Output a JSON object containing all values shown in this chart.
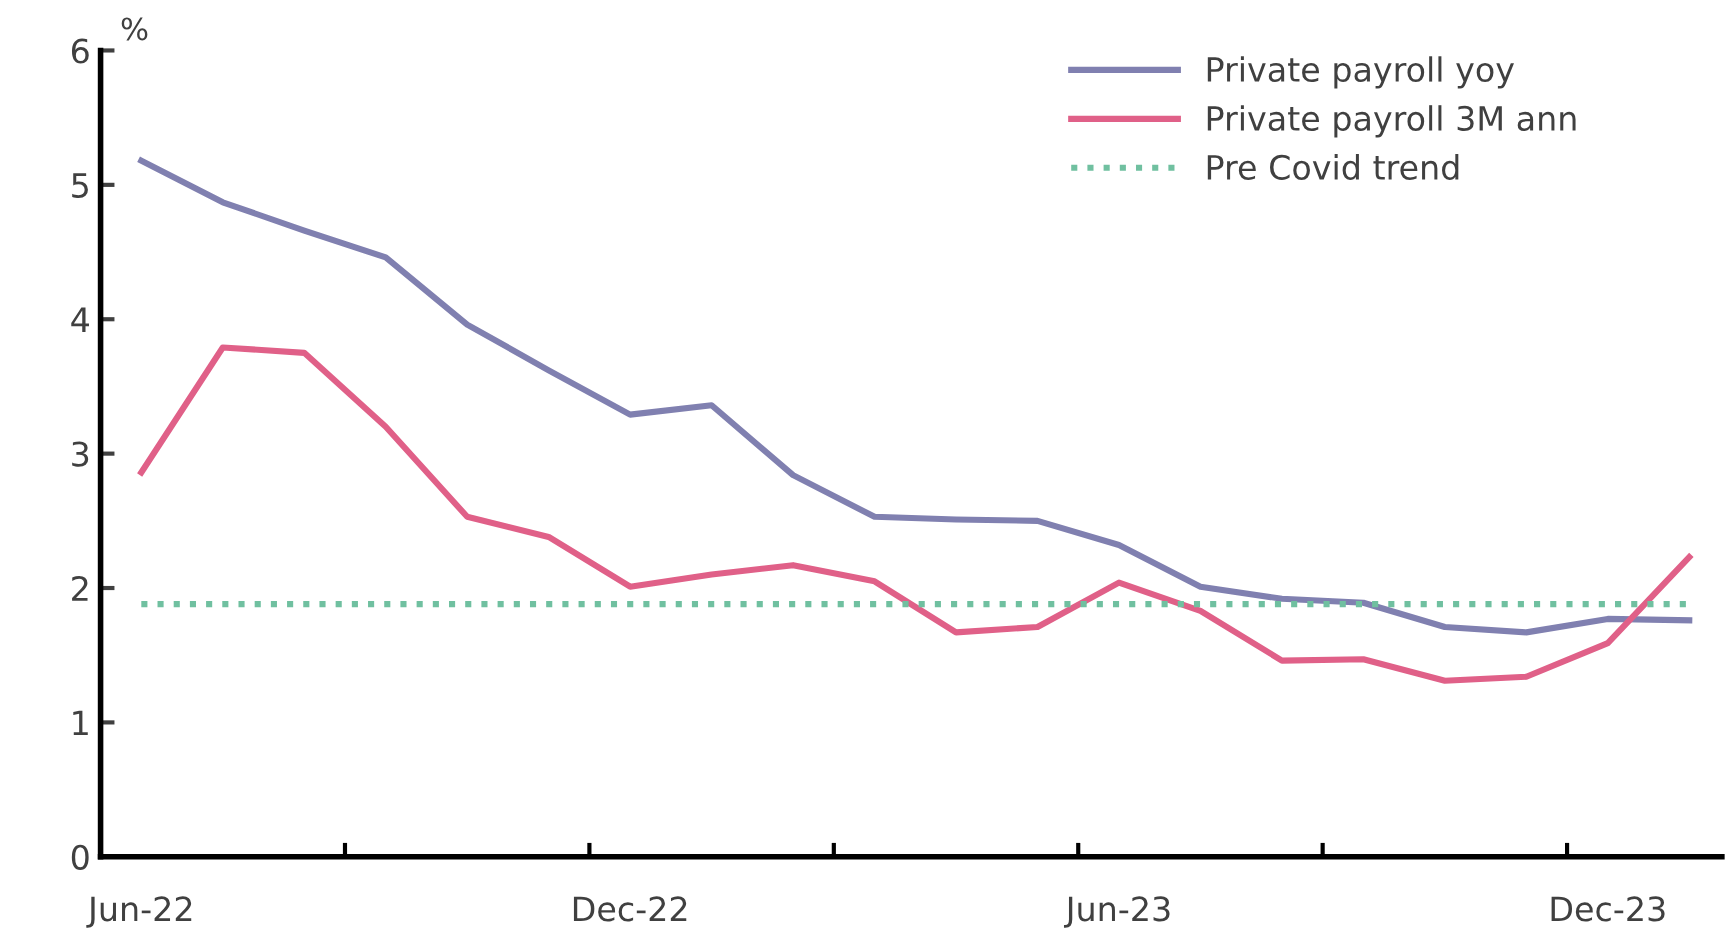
{
  "chart_data": {
    "type": "line",
    "categories": [
      "Jun-22",
      null,
      null,
      null,
      null,
      null,
      "Dec-22",
      null,
      null,
      null,
      null,
      null,
      "Jun-23",
      null,
      null,
      null,
      null,
      null,
      "Dec-23",
      null
    ],
    "ylabel": "%",
    "series": [
      {
        "name": "Private payroll yoy",
        "color": "#8080b0",
        "values": [
          5.18,
          4.87,
          4.66,
          4.46,
          3.96,
          3.62,
          3.29,
          3.36,
          2.84,
          2.53,
          2.51,
          2.5,
          2.32,
          2.01,
          1.92,
          1.89,
          1.71,
          1.67,
          1.77,
          1.76
        ]
      },
      {
        "name": "Private payroll 3M ann",
        "color": "#e06088",
        "values": [
          2.86,
          3.79,
          3.75,
          3.2,
          2.53,
          2.38,
          2.01,
          2.1,
          2.17,
          2.05,
          1.67,
          1.71,
          2.04,
          1.83,
          1.46,
          1.47,
          1.31,
          1.34,
          1.59,
          2.23
        ]
      },
      {
        "name": "Pre Covid trend",
        "color": "#70c0a0",
        "line_style": "dotted",
        "values": [
          1.88,
          1.88,
          1.88,
          1.88,
          1.88,
          1.88,
          1.88,
          1.88,
          1.88,
          1.88,
          1.88,
          1.88,
          1.88,
          1.88,
          1.88,
          1.88,
          1.88,
          1.88,
          1.88,
          1.88
        ]
      }
    ],
    "ylim": [
      0,
      6
    ],
    "yticks": [
      0,
      1,
      2,
      3,
      4,
      5,
      6
    ],
    "legend": "top right",
    "grid": false,
    "line_style": "solid"
  }
}
